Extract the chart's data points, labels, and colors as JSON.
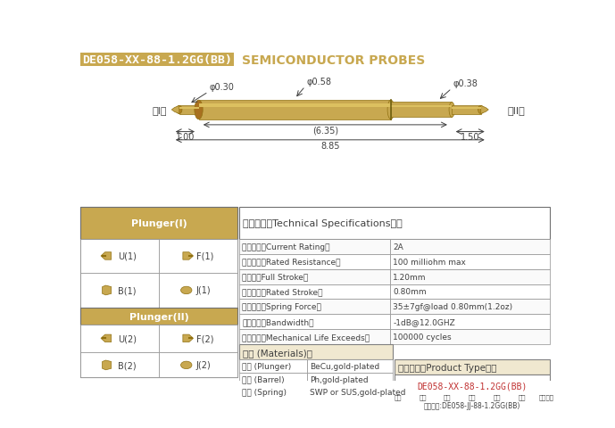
{
  "title_box_text": "DE058-XX-88-1.2GG(BB)",
  "title_box_color": "#C8A850",
  "title_text_color": "#FFFFFF",
  "subtitle_text": "SEMICONDUCTOR PROBES",
  "subtitle_color": "#C8A850",
  "background_color": "#FFFFFF",
  "gold_color": "#C8A850",
  "gold_light": "#D4B86A",
  "gold_dark": "#A07830",
  "dim_color": "#404040",
  "table_border_color": "#808080",
  "specs": [
    [
      "额定电流（Current Rating）",
      "2A"
    ],
    [
      "额定电阵（Rated Resistance）",
      "100 milliohm max"
    ],
    [
      "满行程（Full Stroke）",
      "1.20mm"
    ],
    [
      "额定行程（Rated Stroke）",
      "0.80mm"
    ],
    [
      "额定弹力（Spring Force）",
      "35±7gf@load 0.80mm(1.2oz)"
    ],
    [
      "频率带宽（Bandwidth）",
      "-1dB@12.0GHZ"
    ],
    [
      "测试寿命（Mechanical Life Exceeds）",
      "100000 cycles"
    ]
  ],
  "materials": [
    [
      "针头 (Plunger)",
      "BeCu,gold-plated"
    ],
    [
      "针管 (Barrel)",
      "Ph,gold-plated"
    ],
    [
      "弹筼 (Spring)",
      "SWP or SUS,gold-plated"
    ]
  ],
  "plunger_I_title": "Plunger(I)",
  "plunger_II_title": "Plunger(II)",
  "plunger_I_types": [
    "U(1)",
    "F(1)",
    "B(1)",
    "J(1)"
  ],
  "plunger_II_types": [
    "U(2)",
    "F(2)",
    "B(2)",
    "J(2)"
  ],
  "product_type_title": "成品型号（Product Type）：",
  "product_type_model": "DE058-XX-88-1.2GG(BB)",
  "product_labels": [
    "系列",
    "规格",
    "头型",
    "印长",
    "弹力",
    "镀金",
    "针头材质"
  ],
  "product_order": "订购举例:DE058-JJ-88-1.2GG(BB)",
  "tech_title": "技术要求（Technical Specifications）：",
  "materials_title": "材质 (Materials)："
}
